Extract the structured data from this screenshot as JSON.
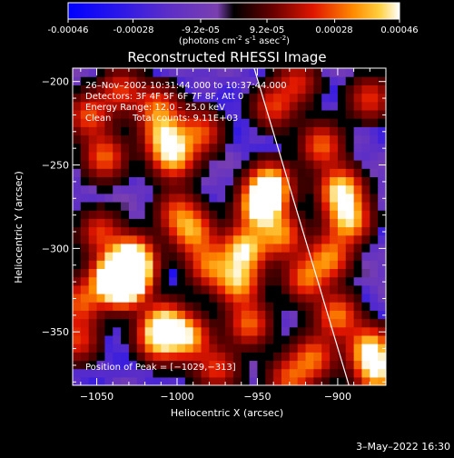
{
  "colorbar": {
    "ticks": [
      "-0.00046",
      "-0.00028",
      "-9.2e-05",
      "9.2e-05",
      "0.00028",
      "0.00046"
    ],
    "units_main": "(photons cm",
    "units_exp1": "-2",
    "units_mid": " s",
    "units_exp2": "-1",
    "units_mid2": " asec",
    "units_exp3": "-2",
    "units_end": ")"
  },
  "chart_data": {
    "type": "heatmap",
    "title": "Reconstructed RHESSI Image",
    "xlabel": "Heliocentric X (arcsec)",
    "ylabel": "Heliocentric Y (arcsec)",
    "xlim": [
      -1065,
      -870
    ],
    "ylim": [
      -382,
      -192
    ],
    "xticks": [
      -1050,
      -1000,
      -950,
      -900
    ],
    "yticks": [
      -200,
      -250,
      -300,
      -350
    ],
    "xtick_labels": [
      "−1050",
      "−1000",
      "−950",
      "−900"
    ],
    "ytick_labels": [
      "−200",
      "−250",
      "−300",
      "−350"
    ],
    "colorscale_range": [
      -0.00046,
      0.00046
    ],
    "annotations": [
      "26–Nov–2002 10:31:44.000 to 10:37:44.000",
      "Detectors: 3F 4F 5F 6F 7F 8F, Att 0",
      "Energy Range: 12.0 – 25.0 keV",
      "Clean",
      "Total counts: 9.11E+03"
    ],
    "peak_label": "Position of Peak = [−1029,−313]",
    "peak_position": [
      -1029,
      -313
    ],
    "limb_line": [
      [
        -952,
        -192
      ],
      [
        -893,
        -382
      ]
    ],
    "emission_regions": [
      {
        "x": -1030,
        "y": -313,
        "level": 1.0
      },
      {
        "x": -1033,
        "y": -322,
        "level": 0.9
      },
      {
        "x": -1042,
        "y": -318,
        "level": 0.7
      },
      {
        "x": -1027,
        "y": -305,
        "level": 0.7
      },
      {
        "x": -1008,
        "y": -345,
        "level": 0.75
      },
      {
        "x": -993,
        "y": -353,
        "level": 0.7
      },
      {
        "x": -1012,
        "y": -355,
        "level": 0.6
      },
      {
        "x": -1048,
        "y": -290,
        "level": 0.45
      },
      {
        "x": -1045,
        "y": -245,
        "level": 0.55
      },
      {
        "x": -1055,
        "y": -220,
        "level": 0.5
      },
      {
        "x": -1035,
        "y": -205,
        "level": 0.45
      },
      {
        "x": -1008,
        "y": -232,
        "level": 0.65
      },
      {
        "x": -1002,
        "y": -245,
        "level": 0.7
      },
      {
        "x": -1012,
        "y": -215,
        "level": 0.5
      },
      {
        "x": -985,
        "y": -230,
        "level": 0.5
      },
      {
        "x": -990,
        "y": -290,
        "level": 0.6
      },
      {
        "x": -980,
        "y": -310,
        "level": 0.55
      },
      {
        "x": -1000,
        "y": -278,
        "level": 0.45
      },
      {
        "x": -948,
        "y": -275,
        "level": 0.95
      },
      {
        "x": -942,
        "y": -262,
        "level": 0.9
      },
      {
        "x": -958,
        "y": -300,
        "level": 0.8
      },
      {
        "x": -962,
        "y": -320,
        "level": 0.7
      },
      {
        "x": -935,
        "y": -292,
        "level": 0.6
      },
      {
        "x": -955,
        "y": -345,
        "level": 0.55
      },
      {
        "x": -940,
        "y": -215,
        "level": 0.45
      },
      {
        "x": -925,
        "y": -200,
        "level": 0.4
      },
      {
        "x": -910,
        "y": -238,
        "level": 0.55
      },
      {
        "x": -898,
        "y": -265,
        "level": 0.85
      },
      {
        "x": -893,
        "y": -283,
        "level": 0.75
      },
      {
        "x": -905,
        "y": -305,
        "level": 0.6
      },
      {
        "x": -920,
        "y": -318,
        "level": 0.55
      },
      {
        "x": -900,
        "y": -340,
        "level": 0.6
      },
      {
        "x": -880,
        "y": -360,
        "level": 0.8
      },
      {
        "x": -875,
        "y": -375,
        "level": 0.7
      },
      {
        "x": -915,
        "y": -365,
        "level": 0.55
      },
      {
        "x": -930,
        "y": -378,
        "level": 0.5
      },
      {
        "x": -1060,
        "y": -332,
        "level": 0.5
      },
      {
        "x": -1062,
        "y": -355,
        "level": 0.45
      },
      {
        "x": -880,
        "y": -210,
        "level": 0.45
      },
      {
        "x": -975,
        "y": -372,
        "level": 0.45
      }
    ],
    "negative_regions": [
      {
        "x": -985,
        "y": -365,
        "level": 0.55
      },
      {
        "x": -1000,
        "y": -300,
        "level": 0.5
      },
      {
        "x": -920,
        "y": -250,
        "level": 0.45
      },
      {
        "x": -1050,
        "y": -375,
        "level": 0.45
      },
      {
        "x": -965,
        "y": -210,
        "level": 0.4
      }
    ]
  },
  "footer": {
    "date": "3–May–2022 16:30"
  }
}
